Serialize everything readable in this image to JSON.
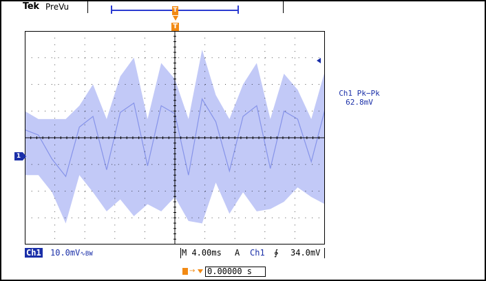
{
  "header": {
    "brand": "Tek",
    "status": "PreVu"
  },
  "markers": {
    "trigger_position_glyph": "T",
    "channel_glyph": "1"
  },
  "measurement": {
    "label": "Ch1 Pk−Pk",
    "value": "62.8mV"
  },
  "bottom": {
    "channel_badge": "Ch1",
    "channel_scale": "10.0mV",
    "coupling_symbol": "∿BW",
    "timebase": "M 4.00ms",
    "acq_mode": "A",
    "trigger_source": "Ch1",
    "trigger_slope": "∲",
    "trigger_level": "34.0mV"
  },
  "horizontal_offset": {
    "value": "0.00000 s"
  },
  "colors": {
    "trace": "#8f9df0",
    "channel": "#1a2fa8",
    "trigger": "#f28a14",
    "grid": "#000000"
  },
  "chart_data": {
    "type": "line",
    "title": "",
    "xlabel": "",
    "ylabel": "",
    "x_divisions": 10,
    "y_divisions": 8,
    "grid": true,
    "series": [
      {
        "values": [
          0.6,
          0.2,
          -1.6,
          -2.9,
          0.8,
          1.6,
          -2.4,
          1.9,
          2.6,
          -2.1,
          2.4,
          1.8,
          -2.8,
          2.9,
          1.2,
          -2.5,
          1.6,
          2.4,
          -2.3,
          2.0,
          1.4,
          -1.8,
          2.1
        ]
      }
    ]
  }
}
